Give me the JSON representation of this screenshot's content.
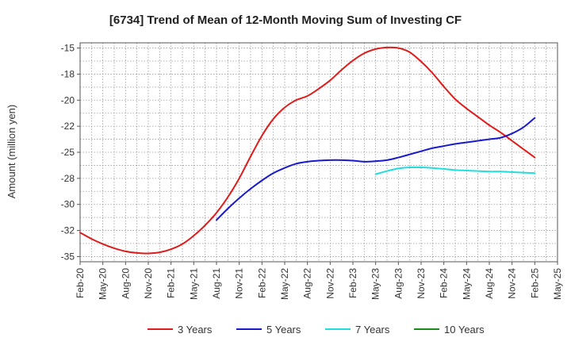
{
  "chart_data": {
    "type": "line",
    "title": "[6734]  Trend of Mean of 12-Month Moving Sum of Investing CF",
    "xlabel": "",
    "ylabel": "Amount (million yen)",
    "ylim": [
      -35.5,
      -14.5
    ],
    "yticks": [
      -15,
      -18,
      -20,
      -22,
      -25,
      -28,
      -30,
      -32,
      -35
    ],
    "yticks_values": [
      -15,
      -17.5,
      -20,
      -22.5,
      -25,
      -27.5,
      -30,
      -32.5,
      -35
    ],
    "categories": [
      "Feb-20",
      "May-20",
      "Aug-20",
      "Nov-20",
      "Feb-21",
      "May-21",
      "Aug-21",
      "Nov-21",
      "Feb-22",
      "May-22",
      "Aug-22",
      "Nov-22",
      "Feb-23",
      "May-23",
      "Aug-23",
      "Nov-23",
      "Feb-24",
      "May-24",
      "Aug-24",
      "Nov-24",
      "Feb-25",
      "May-25"
    ],
    "grid": true,
    "legend_position": "bottom",
    "series": [
      {
        "name": "3 Years",
        "color": "#dd1c1c",
        "x": [
          0,
          0.5,
          1,
          1.5,
          2,
          2.5,
          3,
          3.5,
          4,
          4.5,
          5,
          5.5,
          6,
          6.5,
          7,
          7.5,
          8,
          8.5,
          9,
          9.5,
          10,
          10.5,
          11,
          11.5,
          12,
          12.5,
          13,
          13.5,
          14,
          14.5,
          15,
          15.5,
          16,
          16.5,
          17,
          17.5,
          18,
          18.5,
          19,
          19.5,
          20
        ],
        "values": [
          -32.7,
          -33.3,
          -33.8,
          -34.2,
          -34.5,
          -34.65,
          -34.7,
          -34.6,
          -34.3,
          -33.8,
          -33.0,
          -32.0,
          -30.8,
          -29.3,
          -27.5,
          -25.4,
          -23.4,
          -21.8,
          -20.7,
          -20.0,
          -19.6,
          -18.9,
          -18.1,
          -17.1,
          -16.2,
          -15.5,
          -15.1,
          -14.95,
          -15.0,
          -15.4,
          -16.3,
          -17.4,
          -18.7,
          -19.9,
          -20.8,
          -21.6,
          -22.4,
          -23.1,
          -23.9,
          -24.7,
          -25.5
        ]
      },
      {
        "name": "5 Years",
        "color": "#1a1acc",
        "x": [
          6,
          6.5,
          7,
          7.5,
          8,
          8.5,
          9,
          9.5,
          10,
          10.5,
          11,
          11.5,
          12,
          12.5,
          13,
          13.5,
          14,
          14.5,
          15,
          15.5,
          16,
          16.5,
          17,
          17.5,
          18,
          18.5,
          19,
          19.5,
          20
        ],
        "values": [
          -31.5,
          -30.4,
          -29.4,
          -28.5,
          -27.7,
          -27.0,
          -26.5,
          -26.1,
          -25.9,
          -25.8,
          -25.75,
          -25.75,
          -25.8,
          -25.9,
          -25.85,
          -25.75,
          -25.5,
          -25.2,
          -24.9,
          -24.6,
          -24.4,
          -24.2,
          -24.05,
          -23.9,
          -23.75,
          -23.6,
          -23.2,
          -22.6,
          -21.7
        ]
      },
      {
        "name": "7 Years",
        "color": "#22dddd",
        "x": [
          13,
          13.5,
          14,
          14.5,
          15,
          15.5,
          16,
          16.5,
          17,
          17.5,
          18,
          18.5,
          19,
          19.5,
          20
        ],
        "values": [
          -27.1,
          -26.8,
          -26.55,
          -26.45,
          -26.45,
          -26.5,
          -26.6,
          -26.7,
          -26.75,
          -26.8,
          -26.85,
          -26.85,
          -26.9,
          -26.95,
          -27.0
        ]
      },
      {
        "name": "10 Years",
        "color": "#1a8c1a",
        "x": [],
        "values": []
      }
    ]
  }
}
